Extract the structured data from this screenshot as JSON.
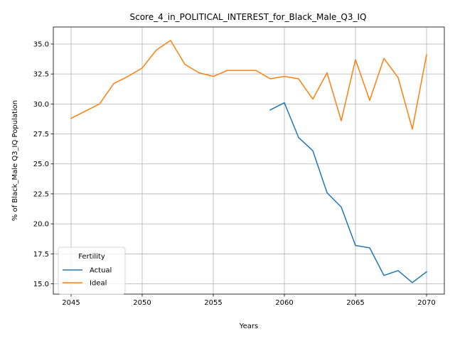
{
  "chart_data": {
    "type": "line",
    "title": "Score_4_in_POLITICAL_INTEREST_for_Black_Male_Q3_IQ",
    "xlabel": "Years",
    "ylabel": "% of Black_Male Q3_IQ Population",
    "xlim": [
      2043.75,
      2071.25
    ],
    "ylim": [
      14.14,
      36.42
    ],
    "xticks": [
      2045,
      2050,
      2055,
      2060,
      2065,
      2070
    ],
    "xtick_labels": [
      "2045",
      "2050",
      "2055",
      "2060",
      "2065",
      "2070"
    ],
    "yticks": [
      15.0,
      17.5,
      20.0,
      22.5,
      25.0,
      27.5,
      30.0,
      32.5,
      35.0
    ],
    "ytick_labels": [
      "15.0",
      "17.5",
      "20.0",
      "22.5",
      "25.0",
      "27.5",
      "30.0",
      "32.5",
      "35.0"
    ],
    "grid": true,
    "legend": {
      "title": "Fertility",
      "placement": "lower-left"
    },
    "series": [
      {
        "name": "Actual",
        "color": "#1f77b4",
        "x": [
          2059,
          2060,
          2061,
          2062,
          2063,
          2064,
          2065,
          2066,
          2067,
          2068,
          2069,
          2070
        ],
        "values": [
          29.5,
          30.1,
          27.2,
          26.1,
          22.6,
          21.4,
          18.2,
          18.0,
          15.7,
          16.1,
          15.1,
          16.0
        ]
      },
      {
        "name": "Ideal",
        "color": "#ff7f0e",
        "x": [
          2045,
          2046,
          2047,
          2048,
          2049,
          2050,
          2051,
          2052,
          2053,
          2054,
          2055,
          2056,
          2057,
          2058,
          2059,
          2060,
          2061,
          2062,
          2063,
          2064,
          2065,
          2066,
          2067,
          2068,
          2069,
          2070
        ],
        "values": [
          28.8,
          29.4,
          30.0,
          31.7,
          32.3,
          33.0,
          34.5,
          35.3,
          33.3,
          32.6,
          32.3,
          32.8,
          32.8,
          32.8,
          32.1,
          32.3,
          32.1,
          30.4,
          32.6,
          28.6,
          33.7,
          30.3,
          33.8,
          32.2,
          27.9,
          34.1
        ]
      }
    ]
  }
}
